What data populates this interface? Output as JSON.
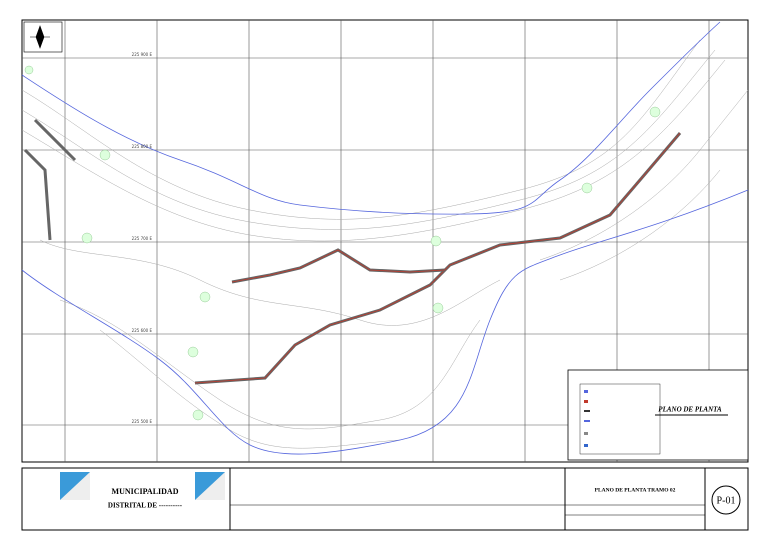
{
  "plan": {
    "label": "PLANO DE PLANTA",
    "grid_labels": [
      "225 900 E",
      "225 800 E",
      "225 700 E",
      "225 600 E",
      "225 500 E"
    ]
  },
  "title_block": {
    "municipality_line1": "MUNICIPALIDAD",
    "municipality_line2": "DISTRITAL DE ----------",
    "sheet_title": "PLANO DE PLANTA TRAMO 02",
    "sheet_number": "P-01"
  }
}
